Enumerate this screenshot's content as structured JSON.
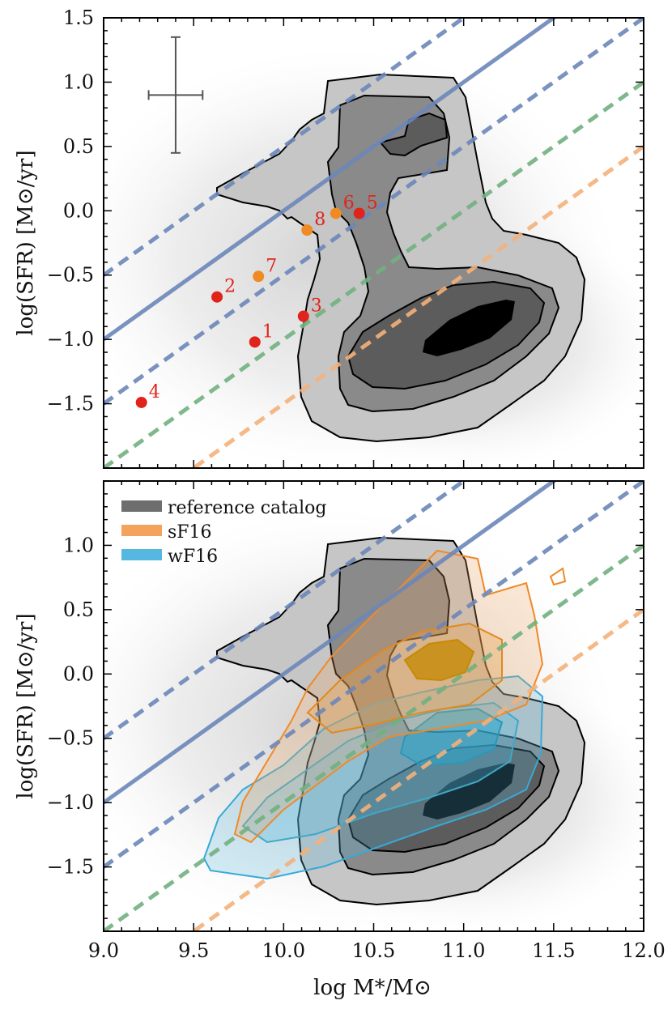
{
  "chart_data": [
    {
      "type": "scatter",
      "panel": "top",
      "xlim": [
        9.0,
        12.0
      ],
      "ylim": [
        -2.0,
        1.5
      ],
      "xlabel": "",
      "ylabel": "log(SFR) [M⊙/yr]",
      "xticks": [
        "9.0",
        "9.5",
        "10.0",
        "10.5",
        "11.0",
        "11.5",
        "12.0"
      ],
      "yticks": [
        "-1.5",
        "-1.0",
        "-0.5",
        "0.0",
        "0.5",
        "1.0",
        "1.5"
      ],
      "points": [
        {
          "label": "1",
          "x": 9.84,
          "y": -1.02,
          "color": "#e0241b"
        },
        {
          "label": "2",
          "x": 9.63,
          "y": -0.67,
          "color": "#e0241b"
        },
        {
          "label": "3",
          "x": 10.11,
          "y": -0.82,
          "color": "#e0241b"
        },
        {
          "label": "4",
          "x": 9.21,
          "y": -1.49,
          "color": "#e0241b"
        },
        {
          "label": "5",
          "x": 10.42,
          "y": -0.02,
          "color": "#e0241b"
        },
        {
          "label": "6",
          "x": 10.29,
          "y": -0.02,
          "color": "#f08a24"
        },
        {
          "label": "7",
          "x": 9.86,
          "y": -0.51,
          "color": "#f08a24"
        },
        {
          "label": "8",
          "x": 10.13,
          "y": -0.15,
          "color": "#f08a24"
        }
      ],
      "error_bar": {
        "x": 9.4,
        "y": 0.9,
        "xerr": 0.15,
        "yerr": 0.45
      }
    },
    {
      "type": "scatter",
      "panel": "bottom",
      "xlim": [
        9.0,
        12.0
      ],
      "ylim": [
        -2.0,
        1.5
      ],
      "xlabel": "log M*/M⊙",
      "ylabel": "log(SFR) [M⊙/yr]",
      "xticks": [
        "9.0",
        "9.5",
        "10.0",
        "10.5",
        "11.0",
        "11.5",
        "12.0"
      ],
      "yticks": [
        "-1.5",
        "-1.0",
        "-0.5",
        "0.0",
        "0.5",
        "1.0"
      ],
      "legend": [
        {
          "name": "reference catalog",
          "color": "#6e6e6e"
        },
        {
          "name": "sF16",
          "color": "#f4a35c"
        },
        {
          "name": "wF16",
          "color": "#56b8e0"
        }
      ],
      "legend_position": "top-left"
    }
  ],
  "reference_lines": [
    {
      "style": "solid",
      "offset": -10.0,
      "color": "#6c86b8"
    },
    {
      "style": "dashed",
      "offset": -9.5,
      "color": "#6c86b8"
    },
    {
      "style": "dashed",
      "offset": -10.5,
      "color": "#6c86b8"
    },
    {
      "style": "dashed",
      "offset": -11.0,
      "color": "#71b07f"
    },
    {
      "style": "dashed",
      "offset": -11.5,
      "color": "#f4b07a"
    }
  ]
}
